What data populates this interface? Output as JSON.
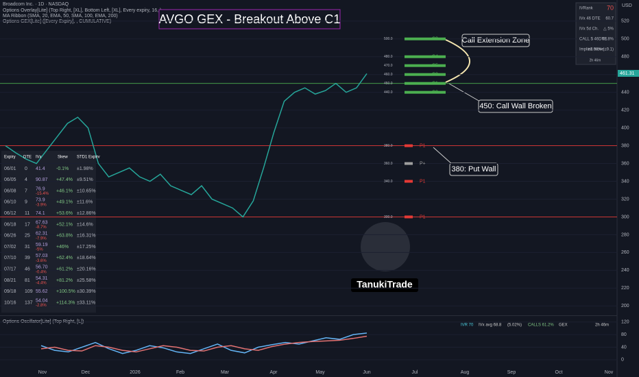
{
  "header": {
    "symbol": "Broadcom Inc. · 1D · NASDAQ",
    "overlay": "Options Overlay[Lite] (Top Right, [XL], Bottom Left, [XL], Every expiry, 16, )",
    "ribbon": "MA Ribbon (SMA, 20, EMA, 50, SMA, 100, EMA, 200)",
    "gex": "Options GEX[Lite] ([Every Expiry], , CUMULATIVE)",
    "currency": "USD"
  },
  "chart_data": {
    "type": "line",
    "title": "AVGO GEX - Breakout Above C1",
    "color": "#26a69a",
    "values": [
      380,
      372,
      365,
      360,
      375,
      390,
      405,
      412,
      400,
      360,
      345,
      350,
      355,
      345,
      340,
      348,
      335,
      330,
      325,
      335,
      320,
      315,
      310,
      300,
      318,
      355,
      395,
      430,
      440,
      445,
      438,
      442,
      450,
      440,
      445,
      461
    ],
    "ylim": [
      191,
      536
    ],
    "yticks": [
      200,
      220,
      240,
      260,
      280,
      300,
      320,
      340,
      360,
      380,
      400,
      420,
      440,
      460,
      480,
      500,
      520
    ],
    "last_price": {
      "value": 461.31,
      "label": "461.31"
    },
    "months": [
      "Nov",
      "Dec",
      "2026",
      "Feb",
      "Mar",
      "Apr",
      "May",
      "Jun",
      "Jul",
      "Aug",
      "Sep",
      "Oct",
      "Nov"
    ],
    "levels": [
      {
        "value": 500,
        "label": "500.0",
        "name": "C2",
        "color": "#4caf50"
      },
      {
        "value": 480,
        "label": "480.0",
        "name": "C4",
        "color": "#4caf50"
      },
      {
        "value": 470,
        "label": "470.0",
        "name": "C5",
        "color": "#4caf50"
      },
      {
        "value": 460,
        "label": "460.0",
        "name": "C3",
        "color": "#4caf50"
      },
      {
        "value": 450,
        "label": "450.0",
        "name": "C1",
        "color": "#4caf50"
      },
      {
        "value": 440,
        "label": "440.0",
        "name": "C3",
        "color": "#4caf50"
      },
      {
        "value": 380,
        "label": "380.0",
        "name": "P1",
        "color": "#e53935"
      },
      {
        "value": 360,
        "label": "360.0",
        "name": "P+",
        "color": "#9e9e9e"
      },
      {
        "value": 340,
        "label": "340.0",
        "name": "P1",
        "color": "#e53935"
      },
      {
        "value": 300,
        "label": "300.0",
        "name": "P1",
        "color": "#e53935"
      }
    ],
    "annotations": [
      "Call Extension Zone",
      "450: Call Wall Broken",
      "380: Put Wall"
    ]
  },
  "iv_panel": {
    "rank_label": "IVRank",
    "rank": 70,
    "ivx_label": "IVx 46 DTE",
    "ivx": 60.7,
    "change_label": "IVx 5d Ch.",
    "change": "△ 5%",
    "calls_label": "CALL $ 46DTE",
    "calls": "68.8%",
    "move_label": "Implied move",
    "move": "±1.98% (±9.1)",
    "timer": "2h 46m"
  },
  "expiry_table": {
    "headers": [
      "Expiry",
      "DTE",
      "IVx",
      "Skew",
      "STD1 Expirv"
    ],
    "rows": [
      [
        "06/01",
        "0",
        "41.4",
        "",
        "-0.1%",
        "±1.98%"
      ],
      [
        "06/05",
        "4",
        "90.87",
        "",
        "+47.4%",
        "±9.51%"
      ],
      [
        "06/08",
        "7",
        "76.9",
        "-15.4%",
        "+46.1%",
        "±10.65%"
      ],
      [
        "06/10",
        "9",
        "73.9",
        "-3.9%",
        "+49.1%",
        "±11.6%"
      ],
      [
        "06/12",
        "11",
        "74.1",
        "",
        "+53.6%",
        "±12.86%"
      ],
      [
        "06/18",
        "17",
        "67.63",
        "-8.7%",
        "+52.1%",
        "±14.6%"
      ],
      [
        "06/26",
        "25",
        "62.31",
        "-7.9%",
        "+63.8%",
        "±16.31%"
      ],
      [
        "07/02",
        "31",
        "59.19",
        "-5%",
        "+46%",
        "±17.25%"
      ],
      [
        "07/10",
        "39",
        "57.03",
        "-3.6%",
        "+62.4%",
        "±18.64%"
      ],
      [
        "07/17",
        "46",
        "56.70",
        "-0.4%",
        "+61.2%",
        "±20.16%"
      ],
      [
        "08/21",
        "81",
        "54.31",
        "-4.4%",
        "+81.2%",
        "±25.58%"
      ],
      [
        "09/18",
        "109",
        "55.62",
        "",
        "+100.5%",
        "±30.39%"
      ],
      [
        "10/16",
        "137",
        "54.04",
        "-2.8%",
        "+114.3%",
        "±33.11%"
      ]
    ]
  },
  "oscillator": {
    "title": "Options Oscillator[Lite] (Top Right, [L])",
    "badges": [
      "IVR 70",
      "IVx avg 68.8",
      "(5.02%)",
      "CALLS 61.2%",
      "GEX",
      "2h 46m"
    ],
    "ylim": [
      -22,
      137
    ],
    "yticks": [
      0,
      40,
      80,
      120
    ],
    "series": [
      {
        "name": "IVx",
        "color": "#64b5f6",
        "values": [
          45,
          30,
          25,
          40,
          55,
          35,
          20,
          30,
          45,
          38,
          25,
          20,
          35,
          50,
          30,
          22,
          40,
          48,
          55,
          50,
          60,
          70,
          65,
          80,
          85
        ]
      },
      {
        "name": "Calls",
        "color": "#e57373",
        "values": [
          35,
          40,
          30,
          28,
          45,
          40,
          30,
          25,
          35,
          45,
          40,
          30,
          28,
          40,
          45,
          35,
          30,
          42,
          50,
          55,
          58,
          60,
          62,
          68,
          75
        ]
      }
    ]
  },
  "logo": "TanukiTrade"
}
